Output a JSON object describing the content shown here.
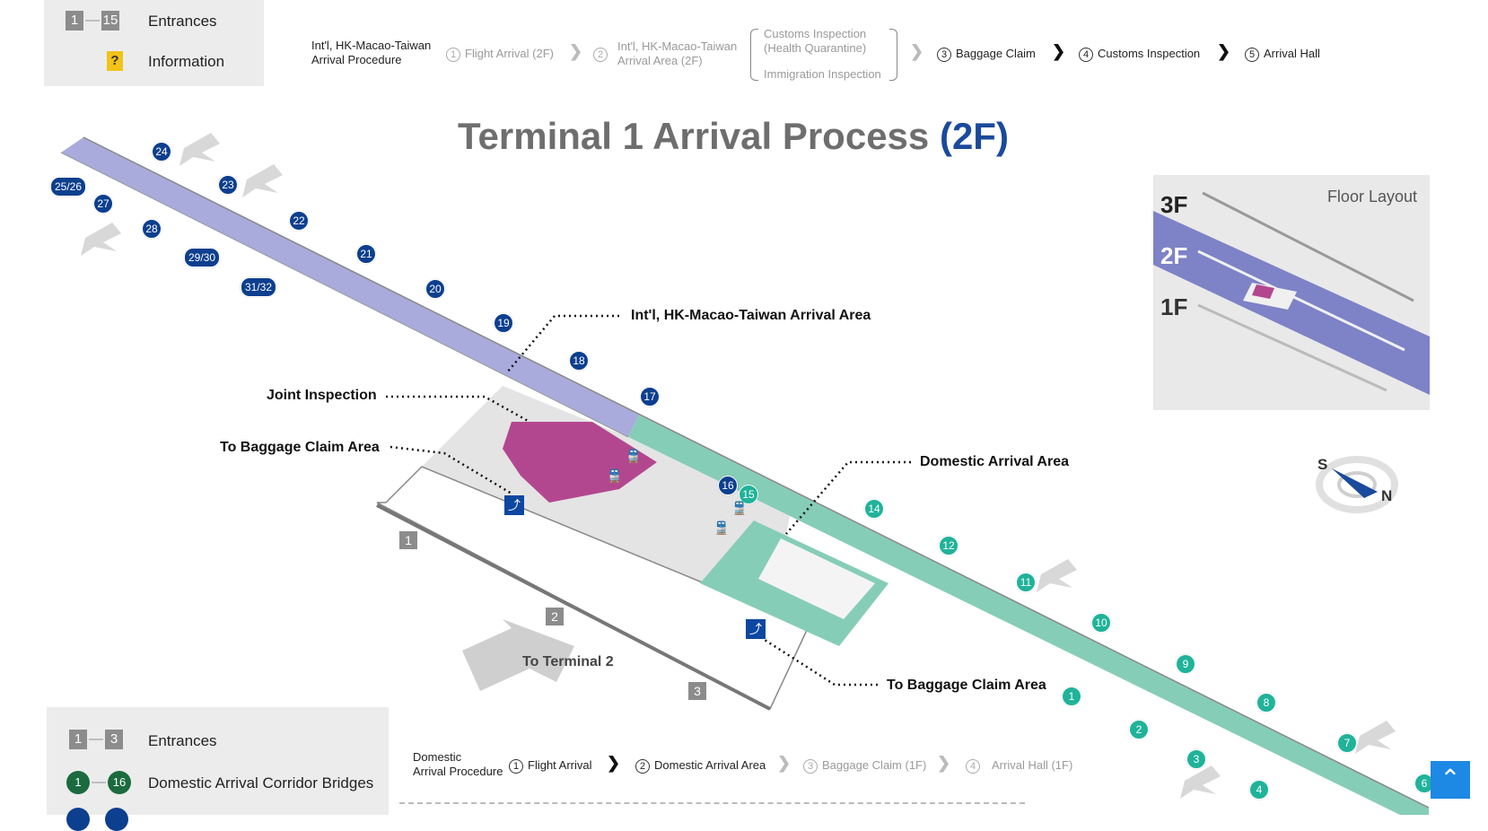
{
  "legend_top": {
    "entrances": {
      "from": "1",
      "to": "15",
      "label": "Entrances"
    },
    "information": {
      "icon": "?",
      "label": "Information"
    }
  },
  "intl_procedure": {
    "title_line1": "Int'l, HK-Macao-Taiwan",
    "title_line2": "Arrival Procedure",
    "steps": [
      {
        "num": "1",
        "label": "Flight Arrival (2F)"
      },
      {
        "num": "2",
        "label_line1": "Int'l, HK-Macao-Taiwan",
        "label_line2": "Arrival Area (2F)"
      },
      {
        "customs_line1": "Customs Inspection",
        "customs_line2": "(Health Quarantine)",
        "immigration": "Immigration Inspection"
      },
      {
        "num": "3",
        "label": "Baggage Claim"
      },
      {
        "num": "4",
        "label": "Customs Inspection"
      },
      {
        "num": "5",
        "label": "Arrival Hall"
      }
    ]
  },
  "map": {
    "title_main": "Terminal 1 Arrival Process",
    "title_floor": "(2F)",
    "callouts": {
      "intl_area": "Int'l, HK-Macao-Taiwan Arrival Area",
      "joint_inspection": "Joint Inspection",
      "baggage_left": "To Baggage Claim Area",
      "domestic_area": "Domestic Arrival Area",
      "baggage_right": "To Baggage Claim Area",
      "to_terminal2": "To Terminal 2"
    },
    "blue_gates": [
      "24",
      "23",
      "25/26",
      "27",
      "22",
      "28",
      "29/30",
      "21",
      "31/32",
      "20",
      "19",
      "18",
      "17",
      "16"
    ],
    "teal_gates": [
      "15",
      "14",
      "12",
      "11",
      "10",
      "9",
      "1",
      "8",
      "2",
      "3",
      "7",
      "4",
      "6"
    ],
    "entrances": [
      "1",
      "2",
      "3"
    ],
    "floor_layout": {
      "title": "Floor Layout",
      "floors": [
        "3F",
        "2F",
        "1F"
      ]
    },
    "compass": {
      "s": "S",
      "n": "N"
    },
    "colors": {
      "intl": "#a9abdc",
      "domestic": "#86cdb7",
      "joint": "#b3478f",
      "gate_blue": "#0d3f8f",
      "gate_teal": "#20b39a",
      "title_gray": "#6e6e6e",
      "title_blue": "#1a4a9c"
    }
  },
  "legend_bottom": {
    "entrances": {
      "from": "1",
      "to": "3",
      "label": "Entrances"
    },
    "domestic_bridges": {
      "from": "1",
      "to": "16",
      "label": "Domestic Arrival Corridor Bridges"
    }
  },
  "domestic_procedure": {
    "title_line1": "Domestic",
    "title_line2": "Arrival Procedure",
    "steps": [
      {
        "num": "1",
        "label": "Flight Arrival"
      },
      {
        "num": "2",
        "label": "Domestic Arrival Area"
      },
      {
        "num": "3",
        "label": "Baggage Claim (1F)"
      },
      {
        "num": "4",
        "label": "Arrival Hall (1F)"
      }
    ]
  }
}
